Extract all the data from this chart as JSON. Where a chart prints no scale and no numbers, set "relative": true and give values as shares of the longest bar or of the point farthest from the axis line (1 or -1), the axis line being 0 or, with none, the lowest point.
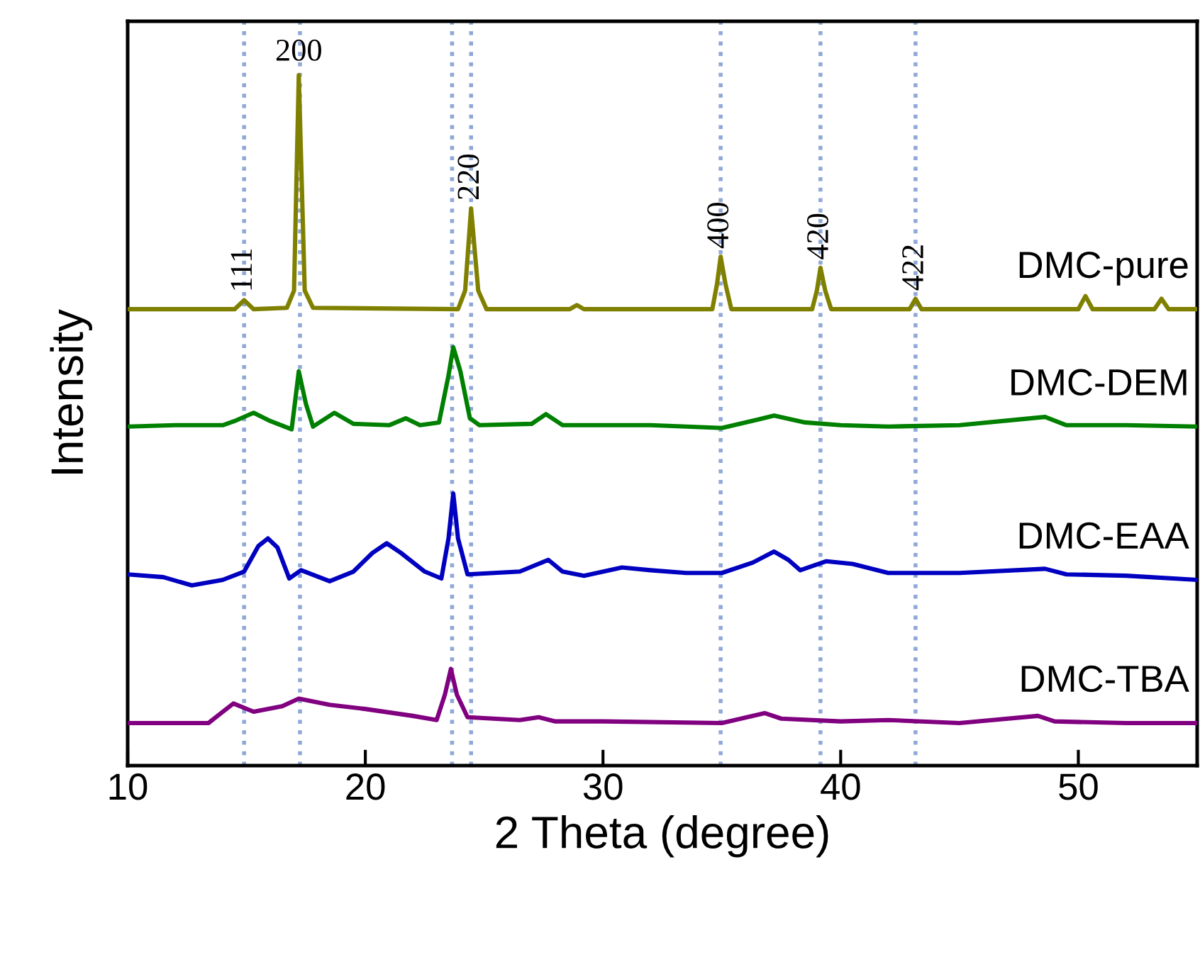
{
  "chart_data": {
    "type": "line",
    "relative": true,
    "xlabel": "2 Theta (degree)",
    "ylabel": "Intensity",
    "xlim": [
      10,
      55
    ],
    "xticks": [
      10,
      20,
      30,
      40,
      50
    ],
    "tick_labels": "x",
    "grid": false,
    "legend": false,
    "series": [
      {
        "name": "DMC-pure",
        "color": "#808000",
        "x": [
          10,
          14.5,
          14.9,
          15.3,
          16.7,
          17.0,
          17.2,
          17.45,
          17.8,
          23.9,
          24.2,
          24.45,
          24.75,
          25.1,
          28.6,
          28.9,
          29.2,
          34.6,
          34.8,
          34.95,
          35.15,
          35.4,
          38.8,
          39.0,
          39.15,
          39.35,
          39.6,
          42.9,
          43.15,
          43.4,
          50.0,
          50.3,
          50.6,
          53.2,
          53.5,
          53.8,
          55
        ],
        "values": [
          0.661,
          0.661,
          0.674,
          0.661,
          0.663,
          0.688,
          1.0,
          0.688,
          0.663,
          0.661,
          0.688,
          0.807,
          0.688,
          0.661,
          0.661,
          0.667,
          0.661,
          0.661,
          0.698,
          0.737,
          0.698,
          0.661,
          0.661,
          0.688,
          0.721,
          0.688,
          0.661,
          0.661,
          0.676,
          0.661,
          0.661,
          0.68,
          0.661,
          0.661,
          0.676,
          0.661,
          0.661
        ]
      },
      {
        "name": "DMC-DEM",
        "color": "#008000",
        "x": [
          10,
          12,
          14,
          14.5,
          15.3,
          16,
          16.9,
          17.2,
          17.5,
          17.8,
          18.7,
          19.5,
          21,
          21.7,
          22.3,
          23.1,
          23.5,
          23.7,
          24.0,
          24.4,
          24.8,
          27.0,
          27.6,
          28.3,
          32,
          35,
          36.5,
          37.2,
          38.5,
          40,
          42,
          45,
          48.6,
          49.5,
          52,
          55
        ],
        "values": [
          0.491,
          0.493,
          0.493,
          0.499,
          0.511,
          0.499,
          0.487,
          0.571,
          0.524,
          0.491,
          0.511,
          0.495,
          0.493,
          0.503,
          0.493,
          0.497,
          0.565,
          0.606,
          0.571,
          0.503,
          0.493,
          0.495,
          0.509,
          0.493,
          0.493,
          0.489,
          0.501,
          0.507,
          0.497,
          0.493,
          0.491,
          0.493,
          0.505,
          0.493,
          0.493,
          0.491
        ]
      },
      {
        "name": "DMC-EAA",
        "color": "#0000c0",
        "x": [
          10,
          11.5,
          12.7,
          14,
          14.9,
          15.5,
          15.9,
          16.3,
          16.8,
          17.3,
          18.5,
          19.5,
          20.3,
          20.9,
          21.5,
          22.5,
          23.2,
          23.5,
          23.7,
          23.9,
          24.3,
          26.5,
          27.7,
          28.3,
          29.2,
          30.8,
          32,
          33.5,
          35,
          36.3,
          37.2,
          37.8,
          38.3,
          39.4,
          40.5,
          42,
          45,
          48.6,
          49.5,
          52,
          55
        ],
        "values": [
          0.277,
          0.273,
          0.261,
          0.269,
          0.281,
          0.318,
          0.329,
          0.316,
          0.271,
          0.283,
          0.267,
          0.281,
          0.308,
          0.322,
          0.308,
          0.281,
          0.271,
          0.329,
          0.394,
          0.329,
          0.277,
          0.281,
          0.298,
          0.281,
          0.275,
          0.287,
          0.283,
          0.279,
          0.279,
          0.294,
          0.31,
          0.298,
          0.283,
          0.296,
          0.292,
          0.279,
          0.279,
          0.285,
          0.277,
          0.275,
          0.269
        ]
      },
      {
        "name": "DMC-TBA",
        "color": "#800080",
        "x": [
          10,
          13.4,
          14.0,
          14.45,
          15.3,
          16.5,
          17.2,
          18.5,
          20,
          22,
          23.0,
          23.35,
          23.6,
          23.85,
          24.3,
          26.5,
          27.3,
          28,
          30,
          35,
          36.8,
          37.5,
          40,
          42,
          45,
          48.3,
          49,
          52,
          55
        ],
        "values": [
          0.0616,
          0.0616,
          0.078,
          0.09,
          0.078,
          0.086,
          0.097,
          0.088,
          0.082,
          0.072,
          0.066,
          0.103,
          0.14,
          0.103,
          0.07,
          0.066,
          0.07,
          0.064,
          0.064,
          0.0616,
          0.076,
          0.068,
          0.064,
          0.066,
          0.0616,
          0.072,
          0.064,
          0.0616,
          0.0616
        ]
      }
    ],
    "ref_lines": [
      {
        "axis": "x",
        "value": 14.9,
        "color": "#8fa8d8",
        "line_style": "dotted"
      },
      {
        "axis": "x",
        "value": 17.25,
        "color": "#8fa8d8",
        "line_style": "dotted"
      },
      {
        "axis": "x",
        "value": 23.65,
        "color": "#8fa8d8",
        "line_style": "dotted"
      },
      {
        "axis": "x",
        "value": 24.45,
        "color": "#8fa8d8",
        "line_style": "dotted"
      },
      {
        "axis": "x",
        "value": 34.95,
        "color": "#8fa8d8",
        "line_style": "dotted"
      },
      {
        "axis": "x",
        "value": 39.15,
        "color": "#8fa8d8",
        "line_style": "dotted"
      },
      {
        "axis": "x",
        "value": 43.15,
        "color": "#8fa8d8",
        "line_style": "dotted"
      }
    ],
    "annotations": [
      {
        "text": "111",
        "x": 14.9,
        "y": 0.674
      },
      {
        "text": "200",
        "x": 17.2,
        "y": 1.0
      },
      {
        "text": "220",
        "x": 24.45,
        "y": 0.807
      },
      {
        "text": "400",
        "x": 34.95,
        "y": 0.737
      },
      {
        "text": "420",
        "x": 39.15,
        "y": 0.721
      },
      {
        "text": "422",
        "x": 43.15,
        "y": 0.676
      }
    ]
  }
}
